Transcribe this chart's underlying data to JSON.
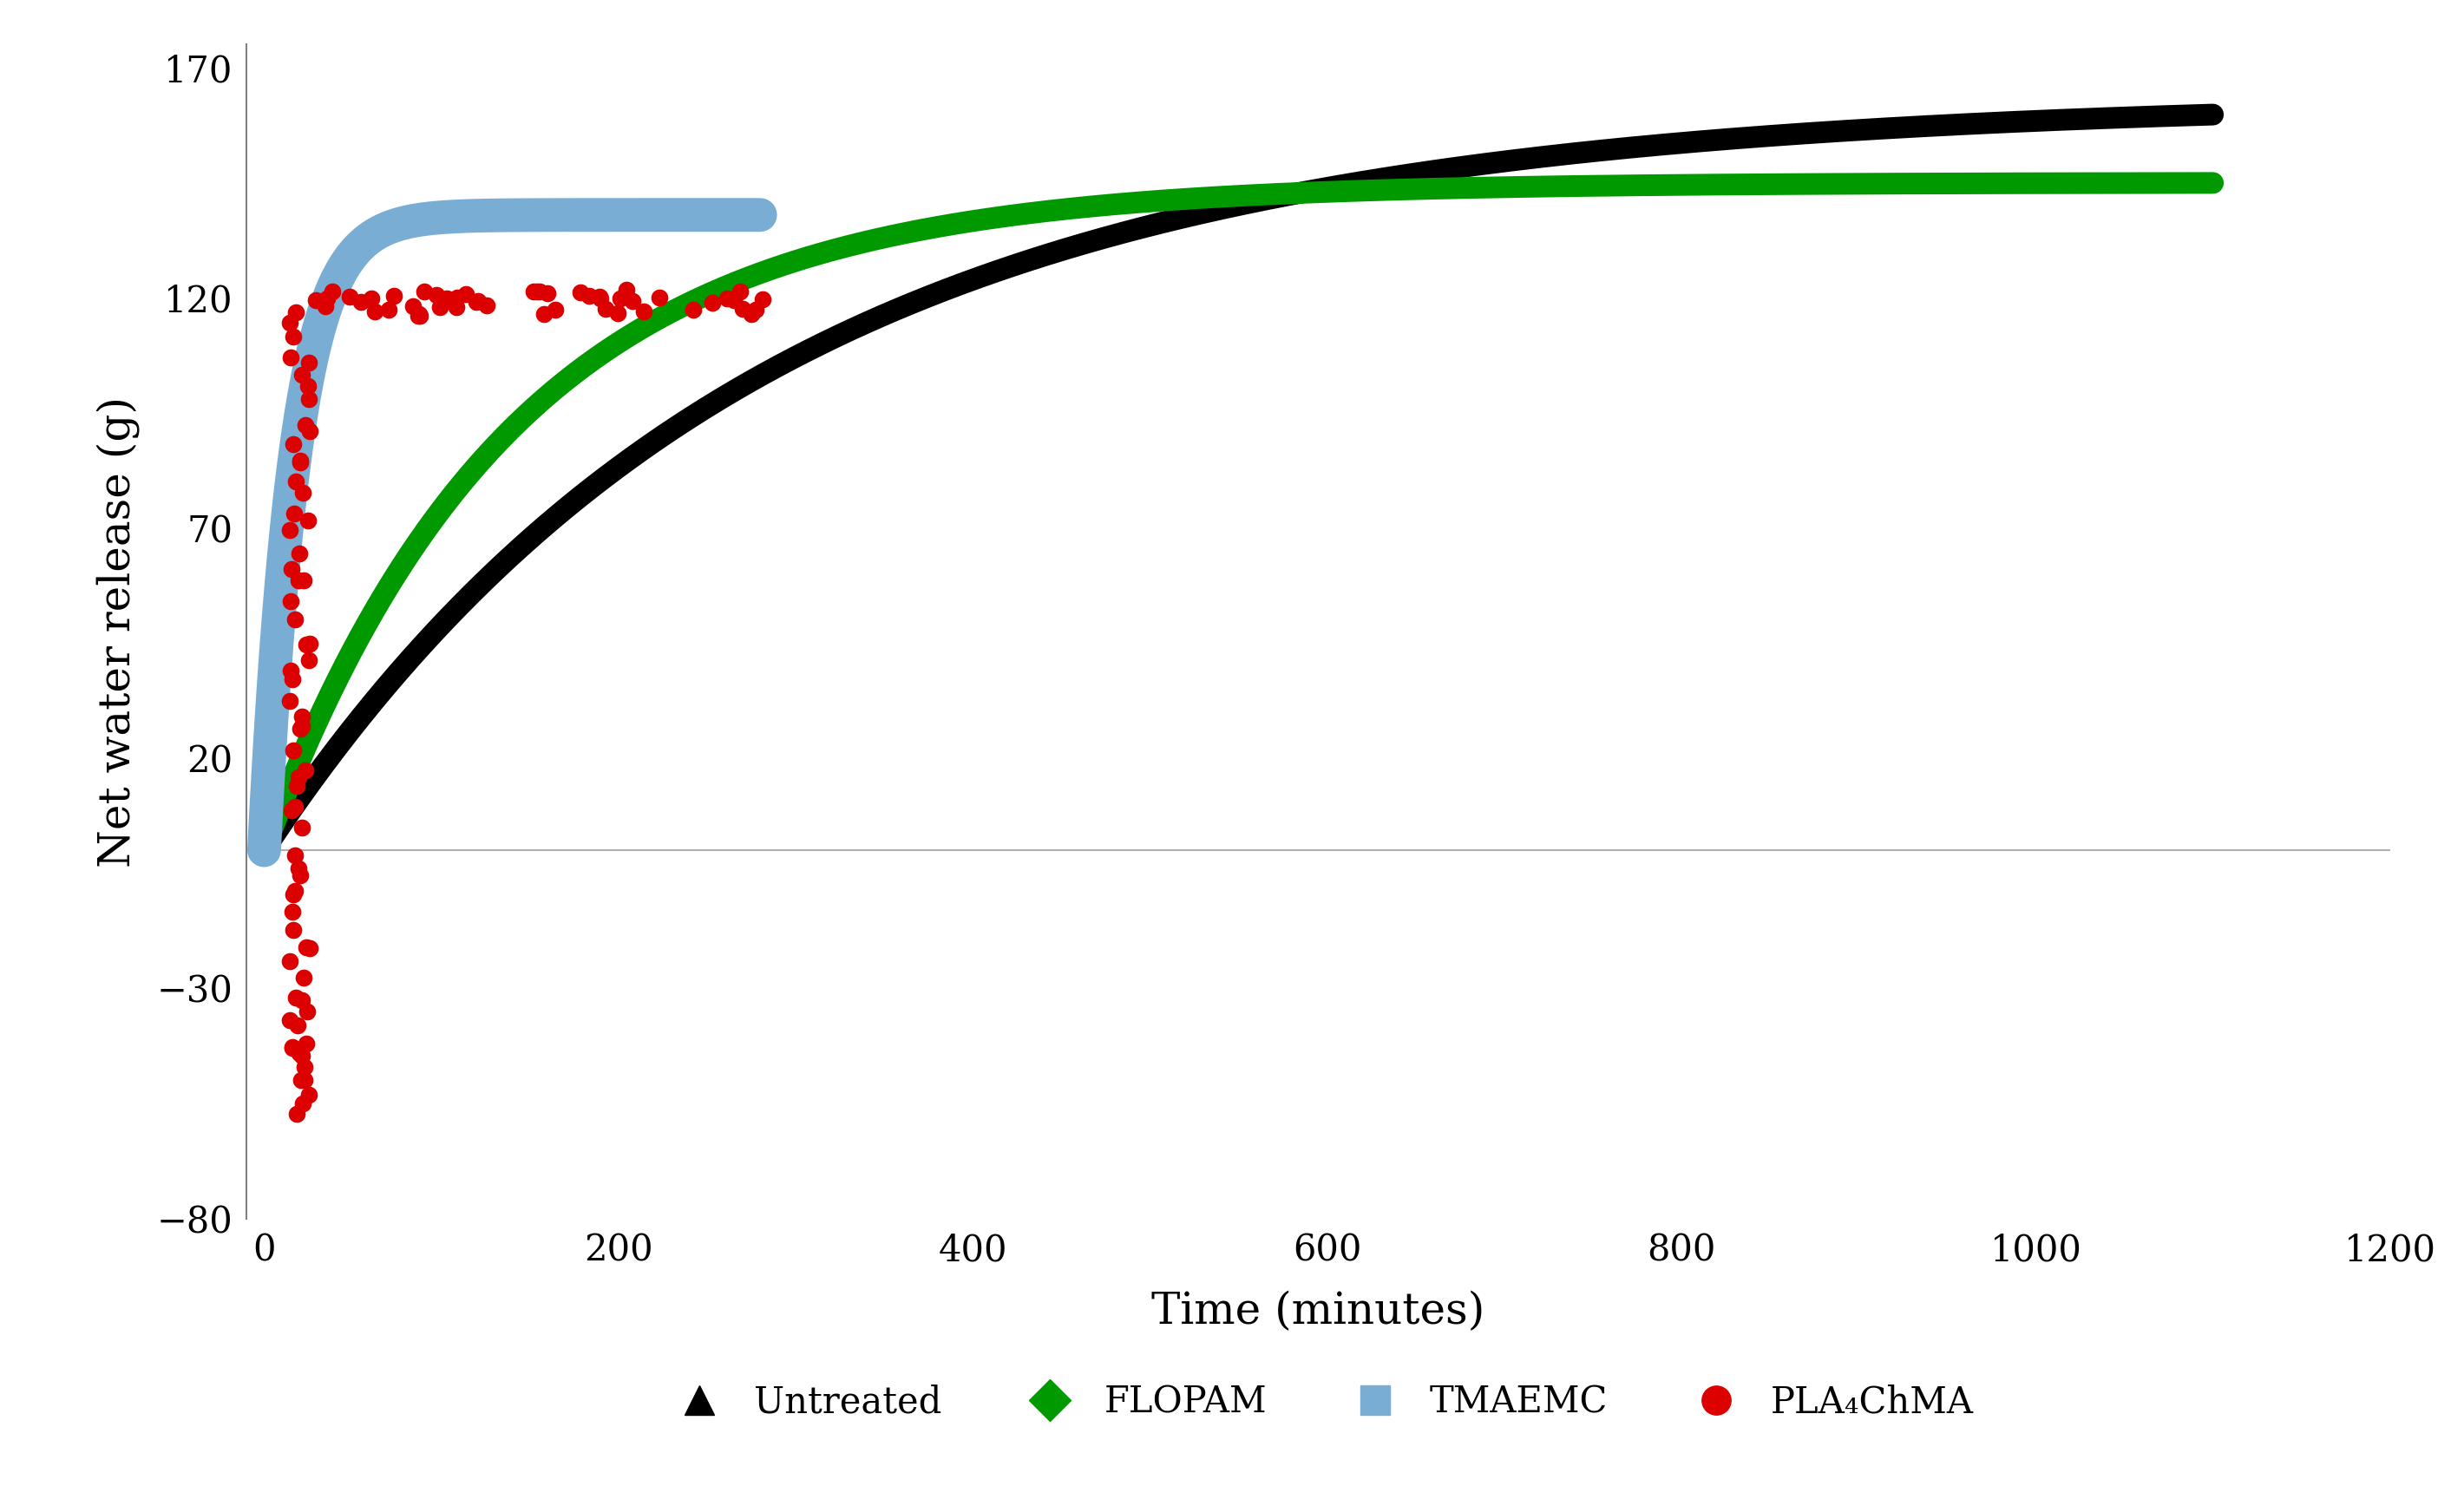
{
  "xlabel": "Time (minutes)",
  "ylabel": "Net water release (g)",
  "xlim": [
    -10,
    1200
  ],
  "ylim": [
    -80,
    175
  ],
  "yticks": [
    -80,
    -30,
    20,
    70,
    120,
    170
  ],
  "xticks": [
    0,
    200,
    400,
    600,
    800,
    1000,
    1200
  ],
  "background_color": "#ffffff",
  "hline_y": 0,
  "hline_color": "#b0b0b0",
  "untreated_color": "#000000",
  "untreated_lw": 18,
  "flopam_color": "#009900",
  "flopam_lw": 18,
  "tmaemc_color": "#7aadd4",
  "tmaemc_lw": 28,
  "pla_color": "#dd0000",
  "pla_ms": 200,
  "axis_fontsize": 36,
  "tick_fontsize": 30,
  "legend_fontsize": 30,
  "spine_color": "#808080",
  "spine_lw": 1.5
}
